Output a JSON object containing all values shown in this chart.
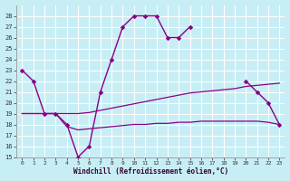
{
  "xlabel": "Windchill (Refroidissement éolien,°C)",
  "background_color": "#c8eef5",
  "grid_color": "#ffffff",
  "line_color": "#880088",
  "xlim": [
    -0.5,
    23.5
  ],
  "ylim": [
    15,
    29
  ],
  "xticks": [
    0,
    1,
    2,
    3,
    4,
    5,
    6,
    7,
    8,
    9,
    10,
    11,
    12,
    13,
    14,
    15,
    16,
    17,
    18,
    19,
    20,
    21,
    22,
    23
  ],
  "yticks": [
    15,
    16,
    17,
    18,
    19,
    20,
    21,
    22,
    23,
    24,
    25,
    26,
    27,
    28
  ],
  "main_line": {
    "segments": [
      {
        "x": [
          0,
          1,
          2,
          3,
          4,
          5,
          6,
          7,
          8,
          9,
          10,
          11,
          12,
          13,
          14,
          15
        ],
        "y": [
          23,
          22,
          19,
          19,
          18,
          15,
          16,
          21,
          24,
          27,
          28,
          28,
          28,
          26,
          26,
          27
        ]
      },
      {
        "x": [
          20,
          21,
          22,
          23
        ],
        "y": [
          22,
          21,
          20,
          18
        ]
      }
    ]
  },
  "upper_line": {
    "x": [
      0,
      1,
      2,
      3,
      4,
      5,
      6,
      7,
      8,
      9,
      10,
      11,
      12,
      13,
      14,
      15,
      16,
      17,
      18,
      19,
      20,
      21,
      22,
      23
    ],
    "y": [
      19,
      19,
      19,
      19,
      19,
      19,
      19.1,
      19.3,
      19.5,
      19.7,
      19.9,
      20.1,
      20.3,
      20.5,
      20.7,
      20.9,
      21.0,
      21.1,
      21.2,
      21.3,
      21.5,
      21.6,
      21.7,
      21.8
    ]
  },
  "lower_line": {
    "x": [
      0,
      1,
      2,
      3,
      4,
      5,
      6,
      7,
      8,
      9,
      10,
      11,
      12,
      13,
      14,
      15,
      16,
      17,
      18,
      19,
      20,
      21,
      22,
      23
    ],
    "y": [
      19,
      19,
      19,
      19,
      17.8,
      17.5,
      17.6,
      17.7,
      17.8,
      17.9,
      18.0,
      18.0,
      18.1,
      18.1,
      18.2,
      18.2,
      18.3,
      18.3,
      18.3,
      18.3,
      18.3,
      18.3,
      18.2,
      18.0
    ]
  }
}
